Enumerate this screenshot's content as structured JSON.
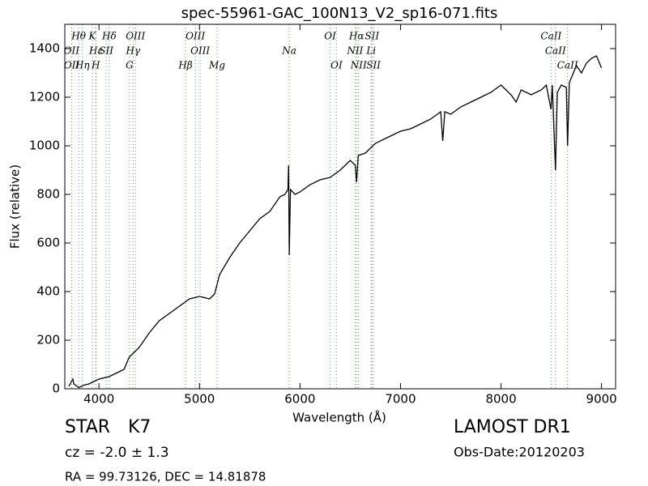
{
  "chart_data": {
    "type": "line",
    "title": "spec-55961-GAC_100N13_V2_sp16-071.fits",
    "x_label": "Wavelength (Å)",
    "y_label": "Flux (relative)",
    "xlim": [
      3660,
      9140
    ],
    "ylim": [
      0,
      1500
    ],
    "xticks": [
      4000,
      5000,
      6000,
      7000,
      8000,
      9000
    ],
    "yticks": [
      0,
      200,
      400,
      600,
      800,
      1000,
      1200,
      1400
    ],
    "series": [
      {
        "color": "#000000",
        "x": [
          3700,
          3740,
          3750,
          3800,
          3850,
          3900,
          4000,
          4100,
          4200,
          4250,
          4300,
          4400,
          4500,
          4600,
          4700,
          4800,
          4900,
          5000,
          5100,
          5150,
          5200,
          5300,
          5400,
          5500,
          5600,
          5700,
          5800,
          5850,
          5880,
          5887,
          5893,
          5905,
          5950,
          6000,
          6100,
          6200,
          6300,
          6400,
          6500,
          6550,
          6563,
          6580,
          6650,
          6750,
          6900,
          7000,
          7100,
          7200,
          7300,
          7400,
          7420,
          7440,
          7500,
          7600,
          7700,
          7800,
          7900,
          8000,
          8100,
          8150,
          8200,
          8300,
          8400,
          8450,
          8498,
          8510,
          8542,
          8560,
          8600,
          8650,
          8662,
          8680,
          8750,
          8800,
          8850,
          8900,
          8950,
          9000
        ],
        "values": [
          10,
          40,
          20,
          5,
          15,
          20,
          40,
          50,
          70,
          80,
          130,
          170,
          230,
          280,
          310,
          340,
          370,
          380,
          370,
          390,
          470,
          540,
          600,
          650,
          700,
          730,
          790,
          800,
          820,
          920,
          550,
          820,
          800,
          810,
          840,
          860,
          870,
          900,
          940,
          920,
          850,
          960,
          970,
          1010,
          1040,
          1060,
          1070,
          1090,
          1110,
          1140,
          1020,
          1140,
          1130,
          1160,
          1180,
          1200,
          1220,
          1250,
          1210,
          1180,
          1230,
          1210,
          1230,
          1250,
          1150,
          1250,
          900,
          1220,
          1250,
          1240,
          1000,
          1260,
          1330,
          1300,
          1340,
          1360,
          1370,
          1320
        ]
      }
    ],
    "line_color": "#55aa55",
    "spectral_lines": [
      {
        "label": "Hθ",
        "wavelength": 3798
      },
      {
        "label": "K",
        "wavelength": 3934
      },
      {
        "label": "Hδ",
        "wavelength": 4102
      },
      {
        "label": "OIII",
        "wavelength": 4363
      },
      {
        "label": "OIII",
        "wavelength": 4959
      },
      {
        "label": "OI",
        "wavelength": 6300
      },
      {
        "label": "Hα",
        "wavelength": 6563
      },
      {
        "label": "SII",
        "wavelength": 6716
      },
      {
        "label": "CaII",
        "wavelength": 8498
      },
      {
        "label": "OII",
        "wavelength": 3727
      },
      {
        "label": "Hε",
        "wavelength": 3970
      },
      {
        "label": "SII",
        "wavelength": 4072
      },
      {
        "label": "Hγ",
        "wavelength": 4340
      },
      {
        "label": "OIII",
        "wavelength": 5007
      },
      {
        "label": "Na",
        "wavelength": 5893
      },
      {
        "label": "NII",
        "wavelength": 6548
      },
      {
        "label": "Li",
        "wavelength": 6708
      },
      {
        "label": "CaII",
        "wavelength": 8542
      },
      {
        "label": "OII",
        "wavelength": 3729
      },
      {
        "label": "Hη",
        "wavelength": 3835
      },
      {
        "label": "H",
        "wavelength": 3968
      },
      {
        "label": "G",
        "wavelength": 4304
      },
      {
        "label": "Hβ",
        "wavelength": 4861
      },
      {
        "label": "Mg",
        "wavelength": 5175
      },
      {
        "label": "OI",
        "wavelength": 6363
      },
      {
        "label": "NII",
        "wavelength": 6583
      },
      {
        "label": "SII",
        "wavelength": 6731
      },
      {
        "label": "CaII",
        "wavelength": 8662
      }
    ]
  },
  "footer": {
    "class": "STAR",
    "subclass": "K7",
    "survey": "LAMOST DR1",
    "redshift": "cz = -2.0 ± 1.3",
    "date": "Obs-Date:20120203",
    "coords": "RA = 99.73126, DEC = 14.81878"
  }
}
